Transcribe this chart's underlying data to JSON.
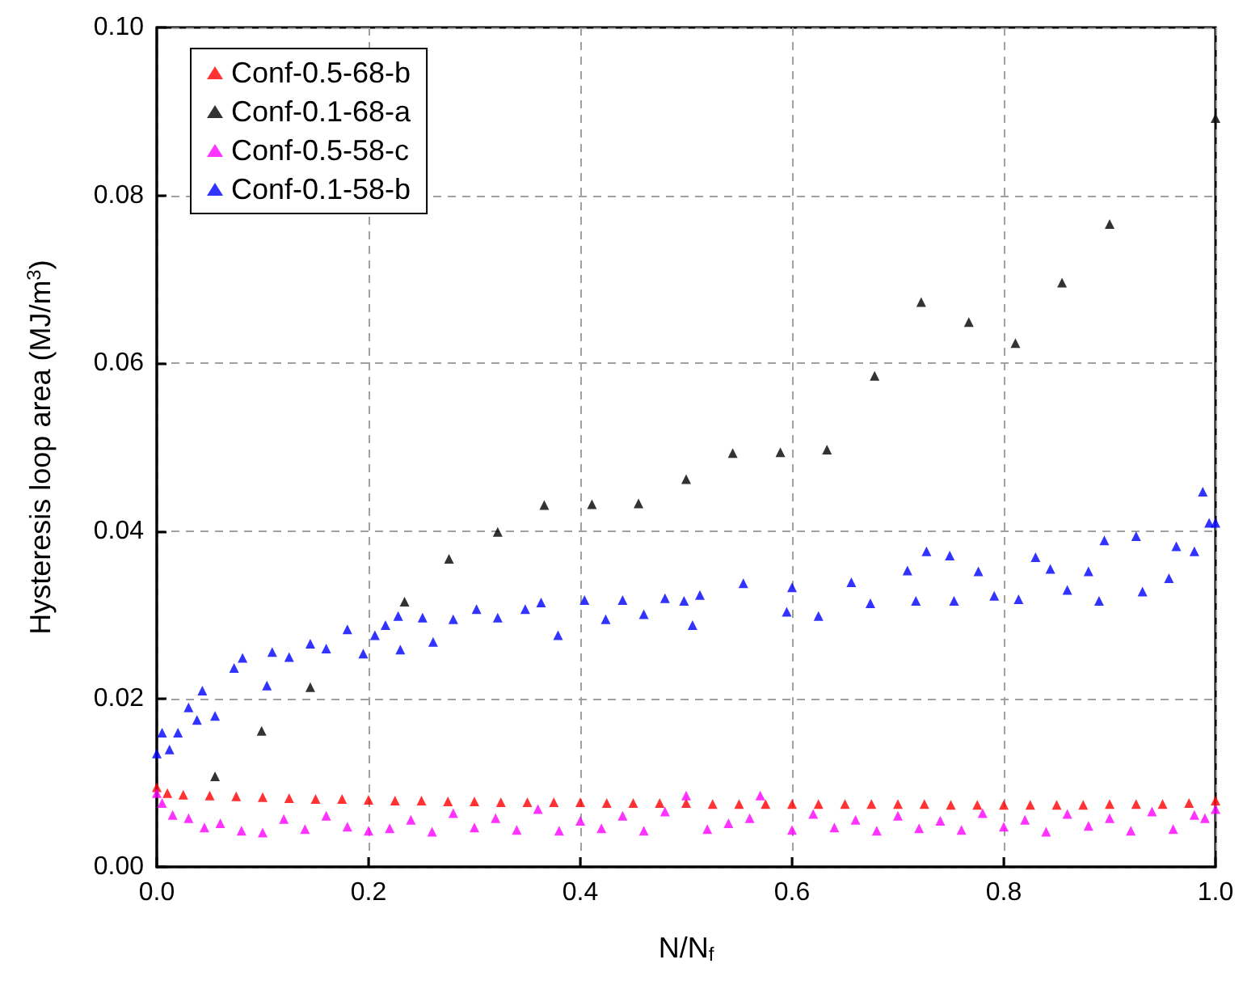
{
  "chart_data": {
    "type": "scatter",
    "xlabel": "N/N$_{f}$",
    "ylabel": "Hysteresis loop area (MJ/m$^{3}$)",
    "xlim": [
      0,
      1
    ],
    "xticks": [
      {
        "value": 0,
        "label": "0.0"
      },
      {
        "value": 0.2,
        "label": "0.2"
      },
      {
        "value": 0.4,
        "label": "0.4"
      },
      {
        "value": 0.6,
        "label": "0.6"
      },
      {
        "value": 0.8,
        "label": "0.8"
      },
      {
        "value": 1,
        "label": "1.0"
      }
    ],
    "ylim": [
      0,
      0.1
    ],
    "yticks": [
      {
        "value": 0,
        "label": "0.00"
      },
      {
        "value": 0.02,
        "label": "0.02"
      },
      {
        "value": 0.04,
        "label": "0.04"
      },
      {
        "value": 0.06,
        "label": "0.06"
      },
      {
        "value": 0.08,
        "label": "0.08"
      },
      {
        "value": 0.1,
        "label": "0.10"
      }
    ],
    "grid": true,
    "legend": "top left",
    "marker": "triangle",
    "series": [
      {
        "name": "Conf-0.5-68-b",
        "color": "#ff0000",
        "x": [
          0,
          0.01,
          0.025,
          0.05,
          0.075,
          0.1,
          0.125,
          0.15,
          0.175,
          0.2,
          0.225,
          0.25,
          0.275,
          0.3,
          0.325,
          0.35,
          0.375,
          0.4,
          0.425,
          0.45,
          0.475,
          0.5,
          0.525,
          0.55,
          0.575,
          0.6,
          0.625,
          0.65,
          0.675,
          0.7,
          0.725,
          0.75,
          0.775,
          0.8,
          0.825,
          0.85,
          0.875,
          0.9,
          0.925,
          0.95,
          0.975,
          1
        ],
        "values": [
          0.0095,
          0.0088,
          0.0086,
          0.0085,
          0.0084,
          0.0083,
          0.0082,
          0.0081,
          0.0081,
          0.008,
          0.0079,
          0.0079,
          0.0078,
          0.0078,
          0.0077,
          0.0077,
          0.0077,
          0.0077,
          0.0076,
          0.0076,
          0.0076,
          0.0076,
          0.0075,
          0.0075,
          0.0075,
          0.0075,
          0.0075,
          0.0075,
          0.0075,
          0.0075,
          0.0075,
          0.0074,
          0.0074,
          0.0074,
          0.0074,
          0.0074,
          0.0074,
          0.0075,
          0.0075,
          0.0075,
          0.0076,
          0.0079
        ]
      },
      {
        "name": "Conf-0.1-68-a",
        "color": "#000000",
        "x": [
          0.055,
          0.099,
          0.145,
          0.234,
          0.276,
          0.322,
          0.366,
          0.411,
          0.455,
          0.5,
          0.544,
          0.589,
          0.633,
          0.678,
          0.722,
          0.767,
          0.811,
          0.855,
          0.9,
          1.0
        ],
        "values": [
          0.0108,
          0.0162,
          0.0214,
          0.0316,
          0.0367,
          0.0399,
          0.0431,
          0.0432,
          0.0433,
          0.0462,
          0.0493,
          0.0494,
          0.0497,
          0.0585,
          0.0673,
          0.0649,
          0.0624,
          0.0696,
          0.0766,
          0.0892
        ]
      },
      {
        "name": "Conf-0.5-58-c",
        "color": "#ff00ff",
        "x": [
          0,
          0.005,
          0.015,
          0.03,
          0.045,
          0.06,
          0.08,
          0.1,
          0.12,
          0.14,
          0.16,
          0.18,
          0.2,
          0.22,
          0.24,
          0.26,
          0.28,
          0.3,
          0.32,
          0.34,
          0.36,
          0.38,
          0.4,
          0.42,
          0.44,
          0.46,
          0.48,
          0.5,
          0.52,
          0.54,
          0.56,
          0.57,
          0.6,
          0.62,
          0.64,
          0.66,
          0.68,
          0.7,
          0.72,
          0.74,
          0.76,
          0.78,
          0.8,
          0.82,
          0.84,
          0.86,
          0.88,
          0.9,
          0.92,
          0.94,
          0.96,
          0.98,
          0.99,
          1
        ],
        "values": [
          0.0088,
          0.0076,
          0.0062,
          0.0058,
          0.0047,
          0.0052,
          0.0043,
          0.0041,
          0.0057,
          0.0045,
          0.0061,
          0.0048,
          0.0043,
          0.0046,
          0.0056,
          0.0042,
          0.0064,
          0.0047,
          0.0058,
          0.0044,
          0.0069,
          0.0043,
          0.0055,
          0.0046,
          0.0061,
          0.0043,
          0.0066,
          0.0085,
          0.0045,
          0.0052,
          0.0058,
          0.0085,
          0.0044,
          0.0063,
          0.0047,
          0.0056,
          0.0043,
          0.0061,
          0.0046,
          0.0055,
          0.0044,
          0.0064,
          0.0048,
          0.0056,
          0.0042,
          0.0063,
          0.0049,
          0.0058,
          0.0043,
          0.0066,
          0.0045,
          0.0062,
          0.0058,
          0.0069
        ]
      },
      {
        "name": "Conf-0.1-58-b",
        "color": "#0000ff",
        "x": [
          0,
          0.005,
          0.012,
          0.02,
          0.03,
          0.038,
          0.043,
          0.055,
          0.073,
          0.081,
          0.104,
          0.109,
          0.125,
          0.145,
          0.16,
          0.18,
          0.195,
          0.206,
          0.216,
          0.228,
          0.23,
          0.251,
          0.261,
          0.28,
          0.302,
          0.322,
          0.348,
          0.363,
          0.379,
          0.404,
          0.424,
          0.44,
          0.46,
          0.48,
          0.498,
          0.506,
          0.513,
          0.554,
          0.595,
          0.6,
          0.625,
          0.656,
          0.674,
          0.709,
          0.717,
          0.727,
          0.749,
          0.753,
          0.776,
          0.791,
          0.814,
          0.83,
          0.844,
          0.86,
          0.88,
          0.89,
          0.895,
          0.925,
          0.931,
          0.956,
          0.963,
          0.98,
          0.988,
          0.994,
          1.0
        ],
        "values": [
          0.0135,
          0.016,
          0.014,
          0.016,
          0.019,
          0.0175,
          0.021,
          0.018,
          0.0237,
          0.0249,
          0.0216,
          0.0256,
          0.025,
          0.0266,
          0.026,
          0.0283,
          0.0254,
          0.0276,
          0.0288,
          0.0299,
          0.0259,
          0.0297,
          0.0268,
          0.0295,
          0.0307,
          0.0297,
          0.0307,
          0.0315,
          0.0276,
          0.0318,
          0.0295,
          0.0318,
          0.0301,
          0.032,
          0.0317,
          0.0288,
          0.0324,
          0.0338,
          0.0304,
          0.0333,
          0.0299,
          0.0339,
          0.0314,
          0.0353,
          0.0317,
          0.0376,
          0.0371,
          0.0317,
          0.0352,
          0.0323,
          0.0319,
          0.0369,
          0.0355,
          0.033,
          0.0352,
          0.0317,
          0.0389,
          0.0394,
          0.0328,
          0.0344,
          0.0382,
          0.0376,
          0.0447,
          0.041,
          0.041
        ]
      }
    ]
  }
}
